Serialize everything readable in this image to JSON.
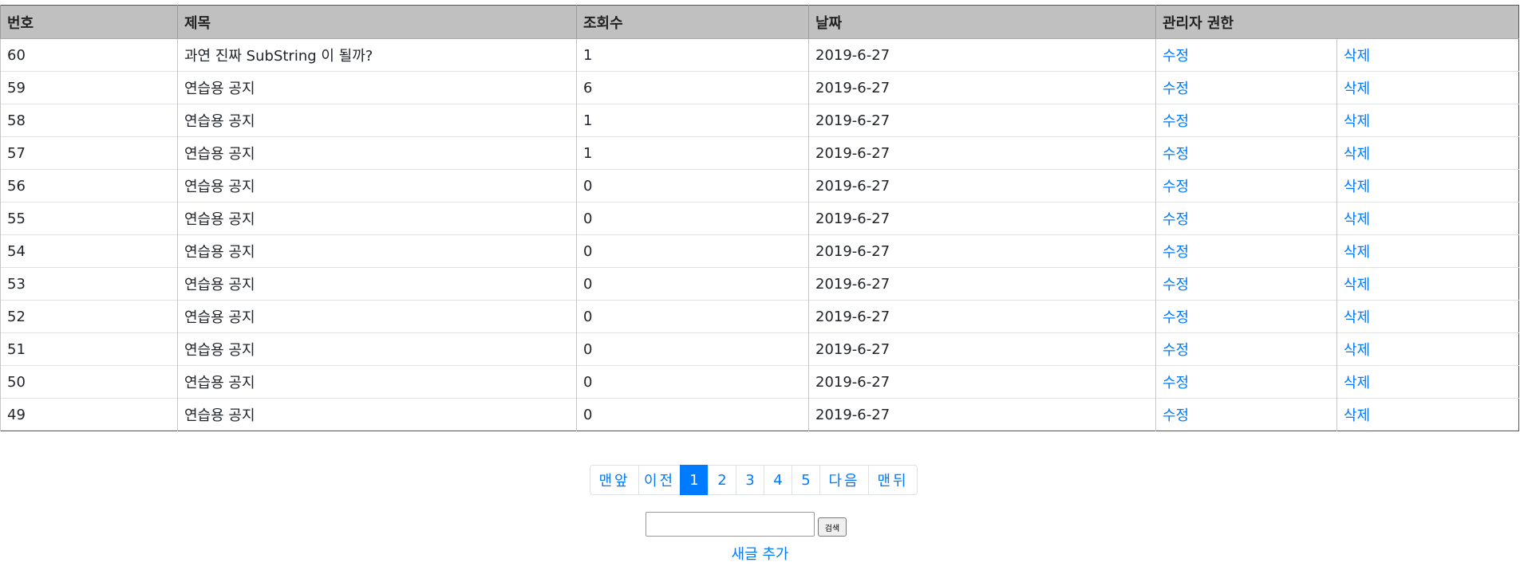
{
  "table": {
    "headers": [
      "번호",
      "제목",
      "조회수",
      "날짜",
      "관리자 권한"
    ],
    "edit_label": "수정",
    "delete_label": "삭제",
    "rows": [
      {
        "no": "60",
        "title": "과연 진짜 SubString 이 될까?",
        "views": "1",
        "date": "2019-6-27"
      },
      {
        "no": "59",
        "title": "연습용 공지",
        "views": "6",
        "date": "2019-6-27"
      },
      {
        "no": "58",
        "title": "연습용 공지",
        "views": "1",
        "date": "2019-6-27"
      },
      {
        "no": "57",
        "title": "연습용 공지",
        "views": "1",
        "date": "2019-6-27"
      },
      {
        "no": "56",
        "title": "연습용 공지",
        "views": "0",
        "date": "2019-6-27"
      },
      {
        "no": "55",
        "title": "연습용 공지",
        "views": "0",
        "date": "2019-6-27"
      },
      {
        "no": "54",
        "title": "연습용 공지",
        "views": "0",
        "date": "2019-6-27"
      },
      {
        "no": "53",
        "title": "연습용 공지",
        "views": "0",
        "date": "2019-6-27"
      },
      {
        "no": "52",
        "title": "연습용 공지",
        "views": "0",
        "date": "2019-6-27"
      },
      {
        "no": "51",
        "title": "연습용 공지",
        "views": "0",
        "date": "2019-6-27"
      },
      {
        "no": "50",
        "title": "연습용 공지",
        "views": "0",
        "date": "2019-6-27"
      },
      {
        "no": "49",
        "title": "연습용 공지",
        "views": "0",
        "date": "2019-6-27"
      }
    ]
  },
  "pagination": {
    "first": "맨앞",
    "prev": "이전",
    "pages": [
      "1",
      "2",
      "3",
      "4",
      "5"
    ],
    "active": "1",
    "next": "다음",
    "last": "맨뒤"
  },
  "search": {
    "value": "",
    "button_label": "검색"
  },
  "new_post_label": "새글 추가",
  "colors": {
    "link": "#007bff",
    "header_bg": "#c0c0c0",
    "active_page_bg": "#007bff"
  }
}
